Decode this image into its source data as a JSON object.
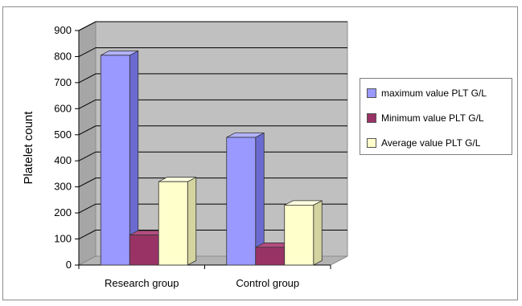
{
  "chart_data": {
    "type": "bar",
    "title": "",
    "xlabel": "",
    "ylabel": "Platelet count",
    "ylim": [
      0,
      900
    ],
    "yticks": [
      0,
      100,
      200,
      300,
      400,
      500,
      600,
      700,
      800,
      900
    ],
    "categories": [
      "Research group",
      "Control group"
    ],
    "grid": true,
    "legend_position": "right",
    "series": [
      {
        "name": "maximum value PLT G/L",
        "values": [
          805,
          490
        ],
        "color": "#9999ff",
        "side": "#6a6ad0",
        "top": "#b3b3ff"
      },
      {
        "name": "Minimum value PLT G/L",
        "values": [
          115,
          68
        ],
        "color": "#993366",
        "side": "#6e2249",
        "top": "#b34d80"
      },
      {
        "name": "Average value PLT G/L",
        "values": [
          320,
          230
        ],
        "color": "#ffffcc",
        "side": "#d4d4a0",
        "top": "#ffffe0"
      }
    ]
  }
}
